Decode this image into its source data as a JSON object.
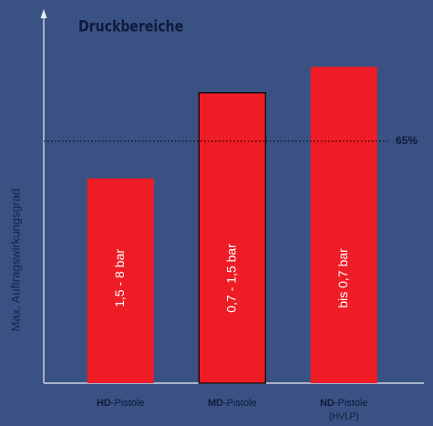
{
  "chart_data": {
    "type": "bar",
    "title": "Druckbereiche",
    "y_label": "Max. Auftragswirkungsgrad",
    "categories": [
      "HD-Pistole",
      "MD-Pistole",
      "ND-Pistole"
    ],
    "category_sublabels": [
      null,
      null,
      "(HVLP)"
    ],
    "values": [
      55,
      78,
      85
    ],
    "bar_labels": [
      "1,5 - 8 bar",
      "0,7 - 1,5 bar",
      "bis 0,7 bar"
    ],
    "color": "#ee1c25",
    "ylim": [
      0,
      100
    ],
    "reference_line": {
      "value": 65,
      "label": "65%"
    }
  }
}
